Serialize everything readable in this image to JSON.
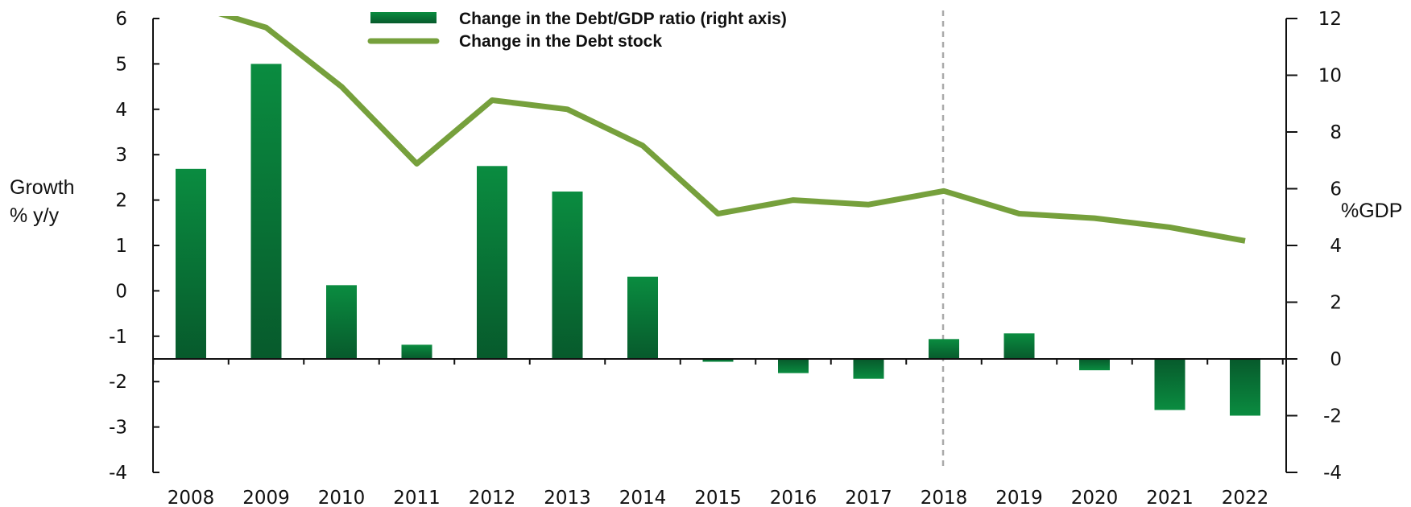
{
  "chart_data": {
    "type": "bar",
    "categories": [
      "2008",
      "2009",
      "2010",
      "2011",
      "2012",
      "2013",
      "2014",
      "2015",
      "2016",
      "2017",
      "2018",
      "2019",
      "2020",
      "2021",
      "2022"
    ],
    "series": [
      {
        "name": "Change in the Debt/GDP ratio (right axis)",
        "type": "bar",
        "axis": "right",
        "values": [
          6.7,
          10.4,
          2.6,
          0.5,
          6.8,
          5.9,
          2.9,
          -0.1,
          -0.5,
          -0.7,
          0.7,
          0.9,
          -0.4,
          -1.8,
          -2.0
        ]
      },
      {
        "name": "Change in the Debt stock",
        "type": "line",
        "axis": "left",
        "values": [
          6.3,
          5.8,
          4.5,
          2.8,
          4.2,
          4.0,
          3.2,
          1.7,
          2.0,
          1.9,
          2.2,
          1.7,
          1.6,
          1.4,
          1.1
        ]
      }
    ],
    "y_left": {
      "label_line1": "Growth",
      "label_line2": "% y/y",
      "lim": [
        -4,
        6
      ],
      "ticks": [
        6,
        5,
        4,
        3,
        2,
        1,
        0,
        -1,
        -2,
        -3,
        -4
      ]
    },
    "y_right": {
      "label": "%GDP",
      "lim": [
        -4,
        12
      ],
      "ticks": [
        12,
        10,
        8,
        6,
        4,
        2,
        0,
        -2,
        -4
      ]
    },
    "vertical_marker": "2018",
    "legend_position": "top-center",
    "colors": {
      "bar": "#0c7a3c",
      "line": "#76a03c",
      "marker": "#aaaaaa",
      "axis": "#111111"
    }
  }
}
